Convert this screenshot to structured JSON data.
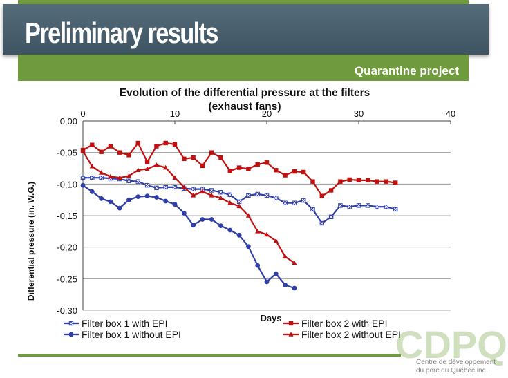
{
  "slide": {
    "title": "Preliminary results",
    "subtitle": "Quarantine project",
    "logo_letters": "CDPQ",
    "logo_line1": "Centre de développement",
    "logo_line2": "du porc du Québec inc."
  },
  "colors": {
    "title_band": "#4a5f6e",
    "accent_green": "#6f9a3d",
    "blue_series": "#2f3ea8",
    "red_series": "#c01010"
  },
  "chart_data": {
    "type": "line",
    "title_line1": "Evolution of the differential pressure at the filters",
    "title_line2": "(exhaust fans)",
    "xlabel": "Days",
    "ylabel": "Differential pressure (in. W.G.)",
    "xlim": [
      0,
      40
    ],
    "ylim": [
      -0.3,
      0.0
    ],
    "xticks": [
      0,
      10,
      20,
      30,
      40
    ],
    "yticks": [
      "0,00",
      "-0,05",
      "-0,10",
      "-0,15",
      "-0,20",
      "-0,25",
      "-0,30"
    ],
    "grid": true,
    "legend_position": "bottom",
    "series": [
      {
        "name": "Filter box 1 with EPI",
        "color": "#2f3ea8",
        "marker": "square-x",
        "x": [
          0,
          1,
          2,
          3,
          4,
          5,
          6,
          7,
          8,
          9,
          10,
          11,
          12,
          13,
          14,
          15,
          16,
          17,
          18,
          19,
          20,
          21,
          22,
          23,
          24,
          25,
          26,
          27,
          28,
          29,
          30,
          31,
          32,
          33,
          34
        ],
        "y": [
          -0.09,
          -0.09,
          -0.09,
          -0.091,
          -0.092,
          -0.095,
          -0.096,
          -0.102,
          -0.106,
          -0.105,
          -0.105,
          -0.107,
          -0.108,
          -0.108,
          -0.11,
          -0.113,
          -0.117,
          -0.128,
          -0.118,
          -0.116,
          -0.118,
          -0.122,
          -0.13,
          -0.13,
          -0.126,
          -0.14,
          -0.162,
          -0.152,
          -0.134,
          -0.136,
          -0.134,
          -0.134,
          -0.136,
          -0.136,
          -0.14
        ]
      },
      {
        "name": "Filter box 2 with EPI",
        "color": "#c01010",
        "marker": "square",
        "x": [
          0,
          1,
          2,
          3,
          4,
          5,
          6,
          7,
          8,
          9,
          10,
          11,
          12,
          13,
          14,
          15,
          16,
          17,
          18,
          19,
          20,
          21,
          22,
          23,
          24,
          25,
          26,
          27,
          28,
          29,
          30,
          31,
          32,
          33,
          34
        ],
        "y": [
          -0.046,
          -0.038,
          -0.049,
          -0.04,
          -0.05,
          -0.054,
          -0.035,
          -0.065,
          -0.04,
          -0.035,
          -0.037,
          -0.06,
          -0.058,
          -0.071,
          -0.05,
          -0.058,
          -0.079,
          -0.074,
          -0.076,
          -0.069,
          -0.066,
          -0.078,
          -0.086,
          -0.08,
          -0.081,
          -0.096,
          -0.119,
          -0.11,
          -0.096,
          -0.093,
          -0.094,
          -0.094,
          -0.096,
          -0.096,
          -0.098
        ]
      },
      {
        "name": "Filter box 1 without EPI",
        "color": "#2f3ea8",
        "marker": "circle",
        "x": [
          0,
          1,
          2,
          3,
          4,
          5,
          6,
          7,
          8,
          9,
          10,
          11,
          12,
          13,
          14,
          15,
          16,
          17,
          18,
          19,
          20,
          21,
          22,
          23
        ],
        "y": [
          -0.102,
          -0.112,
          -0.123,
          -0.128,
          -0.138,
          -0.125,
          -0.12,
          -0.119,
          -0.121,
          -0.127,
          -0.132,
          -0.146,
          -0.165,
          -0.156,
          -0.156,
          -0.166,
          -0.173,
          -0.181,
          -0.199,
          -0.229,
          -0.255,
          -0.242,
          -0.26,
          -0.265
        ]
      },
      {
        "name": "Filter box 2 without EPI",
        "color": "#c01010",
        "marker": "triangle",
        "x": [
          0,
          1,
          2,
          3,
          4,
          5,
          6,
          7,
          8,
          9,
          10,
          11,
          12,
          13,
          14,
          15,
          16,
          17,
          18,
          19,
          20,
          21,
          22,
          23
        ],
        "y": [
          -0.048,
          -0.072,
          -0.082,
          -0.088,
          -0.09,
          -0.087,
          -0.078,
          -0.076,
          -0.07,
          -0.074,
          -0.09,
          -0.105,
          -0.118,
          -0.112,
          -0.118,
          -0.122,
          -0.13,
          -0.135,
          -0.15,
          -0.175,
          -0.18,
          -0.19,
          -0.215,
          -0.225
        ]
      }
    ]
  }
}
